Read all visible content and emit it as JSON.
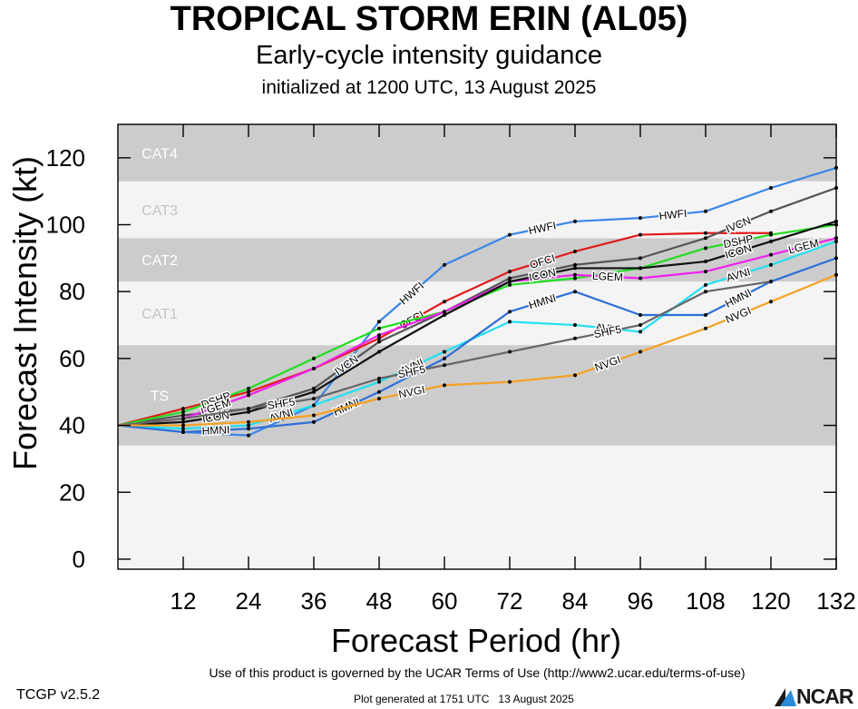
{
  "header": {
    "title": "TROPICAL STORM ERIN (AL05)",
    "subtitle": "Early-cycle intensity guidance",
    "initialized": "initialized at 1200 UTC, 13 August 2025"
  },
  "footer": {
    "terms": "Use of this product is governed by the UCAR Terms of Use (http://www2.ucar.edu/terms-of-use)",
    "version": "TCGP v2.5.2",
    "generated": "Plot generated at 1751 UTC   13 August 2025",
    "logo": "NCAR"
  },
  "chart_data": {
    "type": "line",
    "xlabel": "Forecast Period (hr)",
    "ylabel": "Forecast Intensity (kt)",
    "xlim": [
      0,
      132
    ],
    "ylim": [
      -3,
      130
    ],
    "xticks": [
      12,
      24,
      36,
      48,
      60,
      72,
      84,
      96,
      108,
      120,
      132
    ],
    "yticks": [
      0,
      20,
      40,
      60,
      80,
      100,
      120
    ],
    "grid": false,
    "bands": [
      {
        "name": "TS",
        "min": 34,
        "max": 64,
        "color": "#cccccc"
      },
      {
        "name": "CAT1",
        "min": 64,
        "max": 83,
        "color": "#f4f4f4"
      },
      {
        "name": "CAT2",
        "min": 83,
        "max": 96,
        "color": "#cccccc"
      },
      {
        "name": "CAT3",
        "min": 96,
        "max": 113,
        "color": "#f4f4f4"
      },
      {
        "name": "CAT4",
        "min": 113,
        "max": 137,
        "color": "#cccccc"
      }
    ],
    "series": [
      {
        "name": "HWFI",
        "color": "#3a86e8",
        "x": [
          0,
          12,
          24,
          36,
          48,
          60,
          72,
          84,
          96,
          108,
          120,
          132
        ],
        "y": [
          40,
          38,
          37,
          46,
          71,
          88,
          97,
          101,
          102,
          104,
          111,
          117
        ]
      },
      {
        "name": "OFCI",
        "color": "#e21a1a",
        "x": [
          0,
          12,
          24,
          36,
          48,
          60,
          72,
          84,
          96,
          108,
          120
        ],
        "y": [
          40,
          45,
          50,
          57,
          66,
          77,
          86,
          92,
          97,
          97.5,
          97.5
        ]
      },
      {
        "name": "IVCN",
        "color": "#555555",
        "x": [
          0,
          12,
          24,
          36,
          48,
          60,
          72,
          84,
          96,
          108,
          120,
          132
        ],
        "y": [
          40,
          43,
          45,
          51,
          65,
          74,
          84,
          88,
          90,
          96,
          104,
          111
        ]
      },
      {
        "name": "DSHP",
        "color": "#22dd22",
        "x": [
          0,
          12,
          24,
          36,
          48,
          60,
          72,
          84,
          96,
          108,
          120,
          132
        ],
        "y": [
          40,
          44,
          51,
          60,
          69,
          74,
          82,
          84,
          87,
          93,
          97,
          100
        ]
      },
      {
        "name": "LGEM",
        "color": "#ee22ee",
        "x": [
          0,
          12,
          24,
          36,
          48,
          60,
          72,
          84,
          96,
          108,
          120,
          132
        ],
        "y": [
          40,
          42,
          49,
          57,
          67,
          74,
          83,
          85,
          84,
          86,
          91,
          96
        ]
      },
      {
        "name": "ICON",
        "color": "#111111",
        "x": [
          0,
          12,
          24,
          36,
          48,
          60,
          72,
          84,
          96,
          108,
          120,
          132
        ],
        "y": [
          40,
          41,
          44,
          50,
          62,
          73,
          83,
          87,
          87,
          89,
          95,
          101
        ]
      },
      {
        "name": "AVNI",
        "color": "#22e0f0",
        "x": [
          0,
          12,
          24,
          36,
          48,
          60,
          72,
          84,
          96,
          108,
          120,
          132
        ],
        "y": [
          40,
          39,
          40,
          46,
          53,
          62,
          71,
          70,
          68,
          82,
          88,
          95
        ]
      },
      {
        "name": "HMNI",
        "color": "#2f6fd8",
        "x": [
          0,
          12,
          24,
          36,
          48,
          60,
          72,
          84,
          96,
          108,
          120,
          132
        ],
        "y": [
          40,
          38,
          39,
          41,
          50,
          60,
          74,
          80,
          73,
          73,
          83,
          90
        ]
      },
      {
        "name": "SHF5",
        "color": "#666666",
        "x": [
          0,
          12,
          24,
          36,
          48,
          60,
          72,
          84,
          96,
          108,
          120
        ],
        "y": [
          40,
          42,
          45,
          48,
          54,
          58,
          62,
          66,
          70,
          80,
          83
        ]
      },
      {
        "name": "NVGI",
        "color": "#f5a020",
        "x": [
          0,
          12,
          24,
          36,
          48,
          60,
          72,
          84,
          96,
          108,
          120,
          132
        ],
        "y": [
          40,
          40,
          41,
          43,
          48,
          52,
          53,
          55,
          62,
          69,
          77,
          85
        ]
      }
    ]
  }
}
